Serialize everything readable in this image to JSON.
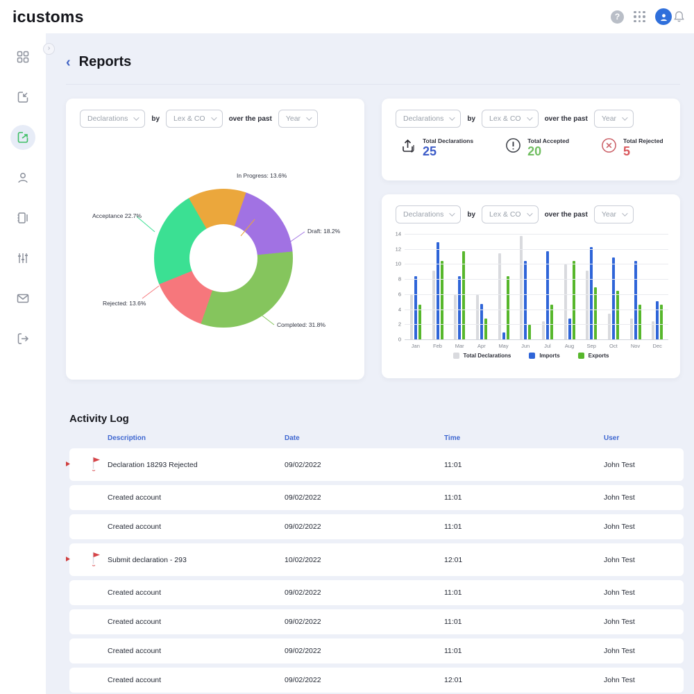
{
  "header": {
    "logo": "icustoms",
    "icons": [
      "help-icon",
      "apps-grid-icon",
      "user-avatar",
      "notifications-bell-icon"
    ]
  },
  "sidebar": {
    "items": [
      {
        "name": "dashboard",
        "active": false
      },
      {
        "name": "imports",
        "active": false
      },
      {
        "name": "exports-reports",
        "active": true
      },
      {
        "name": "users",
        "active": false
      },
      {
        "name": "declarations",
        "active": false
      },
      {
        "name": "settings-sliders",
        "active": false
      },
      {
        "name": "mail",
        "active": false
      },
      {
        "name": "logout",
        "active": false
      }
    ]
  },
  "page": {
    "title": "Reports"
  },
  "filters": {
    "metric": "Declarations",
    "by": "by",
    "company": "Lex & CO",
    "over": "over the past",
    "period": "Year"
  },
  "stats": {
    "items": [
      {
        "icon": "upload-icon",
        "label": "Total Declarations",
        "value": "25",
        "color": "#3d5cc8"
      },
      {
        "icon": "alert-circle-icon",
        "label": "Total Accepted",
        "value": "20",
        "color": "#71be61"
      },
      {
        "icon": "x-circle-icon",
        "label": "Total Rejected",
        "value": "5",
        "color": "#d9575c"
      }
    ]
  },
  "chart_data": [
    {
      "type": "pie",
      "donut": true,
      "start_angle_deg": -30,
      "slices": [
        {
          "label": "In Progress",
          "pct": 13.6,
          "display": "In Progress: 13.6%",
          "color": "#eba73c"
        },
        {
          "label": "Draft",
          "pct": 18.2,
          "display": "Draft: 18.2%",
          "color": "#a172e3"
        },
        {
          "label": "Completed",
          "pct": 31.8,
          "display": "Completed: 31.8%",
          "color": "#85c55d"
        },
        {
          "label": "Rejected",
          "pct": 13.6,
          "display": "Rejected: 13.6%",
          "color": "#f6777c"
        },
        {
          "label": "Acceptance",
          "pct": 22.7,
          "display": "Acceptance 22.7%",
          "color": "#3be093"
        }
      ]
    },
    {
      "type": "bar",
      "categories": [
        "Jan",
        "Feb",
        "Mar",
        "Apr",
        "May",
        "Jun",
        "Jul",
        "Aug",
        "Sep",
        "Oct",
        "Nov",
        "Dec"
      ],
      "series": [
        {
          "name": "Total Declarations",
          "color": "#d9dade",
          "values": [
            6,
            9.2,
            6,
            6,
            11.5,
            13.8,
            2.5,
            10,
            9.2,
            3.5,
            2.9,
            2.5
          ]
        },
        {
          "name": "Imports",
          "color": "#2f65d8",
          "values": [
            8.5,
            13,
            8.5,
            4.8,
            1,
            10.5,
            11.8,
            2.9,
            12.3,
            11,
            10.5,
            5.2
          ]
        },
        {
          "name": "Exports",
          "color": "#57b72c",
          "values": [
            4.7,
            10.5,
            11.8,
            2.9,
            8.5,
            2,
            4.7,
            10.5,
            7,
            6.5,
            4.7,
            4.7
          ]
        }
      ],
      "ylim": [
        0,
        14
      ],
      "yticks": [
        0,
        2,
        4,
        6,
        8,
        10,
        12,
        14
      ],
      "grid": true,
      "legend_position": "bottom"
    }
  ],
  "activity_log": {
    "title": "Activity Log",
    "columns": [
      "Description",
      "Date",
      "Time",
      "User"
    ],
    "rows": [
      {
        "description": "Declaration 18293 Rejected",
        "date": "09/02/2022",
        "time": "11:01",
        "user": "John Test",
        "flagged": true
      },
      {
        "description": "Created account",
        "date": "09/02/2022",
        "time": "11:01",
        "user": "John Test",
        "flagged": false
      },
      {
        "description": "Created account",
        "date": "09/02/2022",
        "time": "11:01",
        "user": "John Test",
        "flagged": false
      },
      {
        "description": "Submit declaration - 293",
        "date": "10/02/2022",
        "time": "12:01",
        "user": "John Test",
        "flagged": true
      },
      {
        "description": "Created account",
        "date": "09/02/2022",
        "time": "11:01",
        "user": "John Test",
        "flagged": false
      },
      {
        "description": "Created account",
        "date": "09/02/2022",
        "time": "11:01",
        "user": "John Test",
        "flagged": false
      },
      {
        "description": "Created account",
        "date": "09/02/2022",
        "time": "11:01",
        "user": "John Test",
        "flagged": false
      },
      {
        "description": "Created account",
        "date": "09/02/2022",
        "time": "12:01",
        "user": "John Test",
        "flagged": false
      }
    ]
  }
}
